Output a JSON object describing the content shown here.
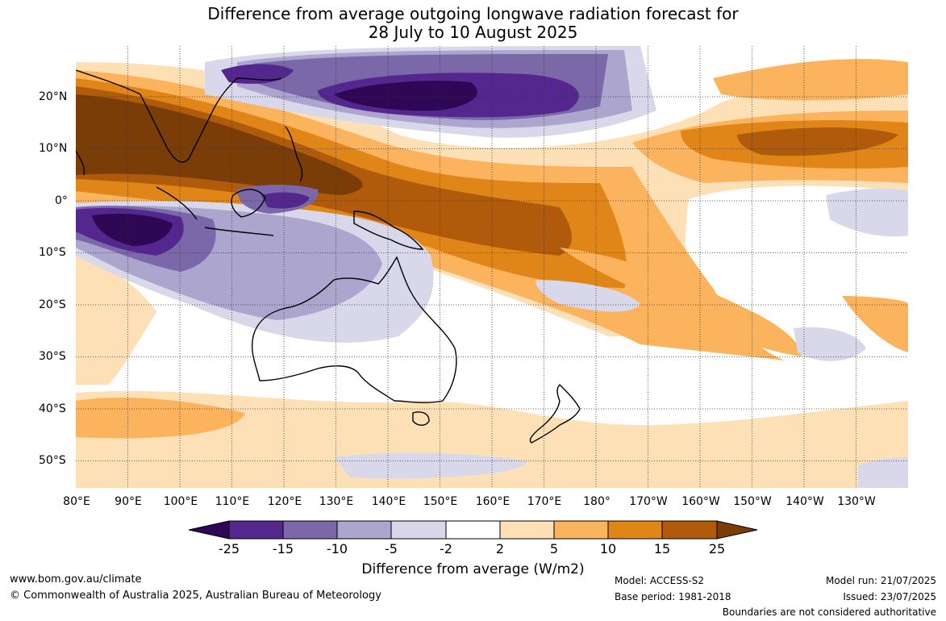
{
  "title": {
    "line1": "Difference from average outgoing longwave radiation forecast for",
    "line2": "28 July to 10 August 2025"
  },
  "map": {
    "region": "Indo-Pacific and Australia",
    "lon_labels": [
      "80°E",
      "90°E",
      "100°E",
      "110°E",
      "120°E",
      "130°E",
      "140°E",
      "150°E",
      "160°E",
      "170°E",
      "180°",
      "170°W",
      "160°W",
      "150°W",
      "140°W",
      "130°W"
    ],
    "lat_labels": [
      "20°N",
      "10°N",
      "0°",
      "10°S",
      "20°S",
      "30°S",
      "40°S",
      "50°S"
    ],
    "gridlines": true
  },
  "legend": {
    "tick_labels": [
      "-25",
      "-15",
      "-10",
      "-5",
      "-2",
      "2",
      "5",
      "10",
      "15",
      "25"
    ],
    "colors": {
      "below_-25": "#2e0854",
      "-25_to_-15": "#54278f",
      "-15_to_-10": "#7a68a8",
      "-10_to_-5": "#aca6cf",
      "-5_to_-2": "#d9d8eb",
      "-2_to_2": "#ffffff",
      "2_to_5": "#fde0b6",
      "5_to_10": "#fbb35e",
      "10_to_15": "#e08518",
      "15_to_25": "#b05a0c",
      "above_25": "#7a3d08"
    },
    "title": "Difference from average (W/m2)"
  },
  "footer": {
    "website": "www.bom.gov.au/climate",
    "copyright": "© Commonwealth of Australia 2025, Australian Bureau of Meteorology",
    "model": "Model: ACCESS-S2",
    "base_period": "Base period: 1981-2018",
    "model_run": "Model run: 21/07/2025",
    "issued": "Issued: 23/07/2025",
    "disclaimer": "Boundaries are not considered authoritative"
  }
}
